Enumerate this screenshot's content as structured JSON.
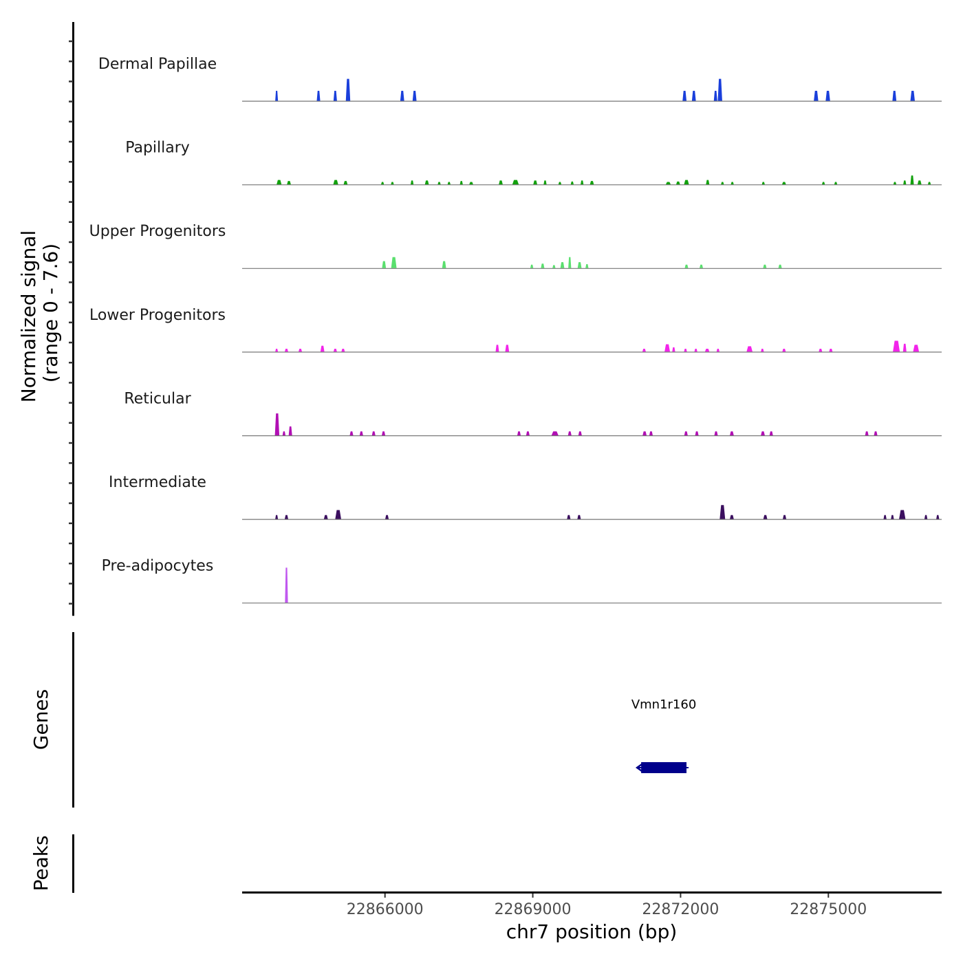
{
  "chart_data": {
    "type": "area",
    "chromosome": "chr7",
    "xlim": [
      22863100,
      22877300
    ],
    "ylim": [
      0,
      7.6
    ],
    "signal_ylabel_line1": "Normalized signal",
    "signal_ylabel_line2": "(range 0 - 7.6)",
    "genes_label": "Genes",
    "peaks_label": "Peaks",
    "xlabel": "chr7 position (bp)",
    "x_ticks": [
      22866000,
      22869000,
      22872000,
      22875000
    ],
    "x_tick_labels": [
      "22866000",
      "22869000",
      "22872000",
      "22875000"
    ],
    "tracks": [
      {
        "name": "Dermal Papillae",
        "color": "#1a3fdb",
        "peaks": [
          [
            22863800,
            55,
            1.0
          ],
          [
            22864650,
            70,
            1.0
          ],
          [
            22864990,
            70,
            1.0
          ],
          [
            22865250,
            90,
            2.2
          ],
          [
            22866350,
            80,
            1.0
          ],
          [
            22866600,
            80,
            1.0
          ],
          [
            22872080,
            80,
            1.0
          ],
          [
            22872270,
            80,
            1.0
          ],
          [
            22872710,
            70,
            1.0
          ],
          [
            22872800,
            90,
            2.2
          ],
          [
            22874750,
            90,
            1.0
          ],
          [
            22874990,
            90,
            1.0
          ],
          [
            22876340,
            80,
            1.0
          ],
          [
            22876710,
            90,
            1.0
          ]
        ]
      },
      {
        "name": "Papillary",
        "color": "#13a10e",
        "peaks": [
          [
            22863850,
            100,
            0.45
          ],
          [
            22864050,
            80,
            0.35
          ],
          [
            22865000,
            100,
            0.45
          ],
          [
            22865200,
            80,
            0.35
          ],
          [
            22865950,
            60,
            0.25
          ],
          [
            22866150,
            60,
            0.25
          ],
          [
            22866550,
            60,
            0.4
          ],
          [
            22866850,
            80,
            0.4
          ],
          [
            22867100,
            60,
            0.25
          ],
          [
            22867300,
            60,
            0.25
          ],
          [
            22867550,
            60,
            0.35
          ],
          [
            22867750,
            80,
            0.25
          ],
          [
            22868350,
            80,
            0.4
          ],
          [
            22868650,
            130,
            0.45
          ],
          [
            22869050,
            80,
            0.4
          ],
          [
            22869250,
            60,
            0.4
          ],
          [
            22869550,
            60,
            0.25
          ],
          [
            22869800,
            60,
            0.3
          ],
          [
            22870000,
            60,
            0.4
          ],
          [
            22870200,
            80,
            0.35
          ],
          [
            22871750,
            100,
            0.25
          ],
          [
            22871950,
            80,
            0.3
          ],
          [
            22872120,
            100,
            0.45
          ],
          [
            22872550,
            70,
            0.45
          ],
          [
            22872850,
            60,
            0.25
          ],
          [
            22873050,
            60,
            0.25
          ],
          [
            22873680,
            60,
            0.25
          ],
          [
            22874100,
            80,
            0.25
          ],
          [
            22874900,
            60,
            0.25
          ],
          [
            22875150,
            60,
            0.25
          ],
          [
            22876350,
            60,
            0.25
          ],
          [
            22876550,
            60,
            0.4
          ],
          [
            22876700,
            70,
            0.9
          ],
          [
            22876850,
            80,
            0.4
          ],
          [
            22877050,
            60,
            0.25
          ]
        ]
      },
      {
        "name": "Upper Progenitors",
        "color": "#5adf6e",
        "peaks": [
          [
            22865980,
            80,
            0.7
          ],
          [
            22866180,
            110,
            1.1
          ],
          [
            22867200,
            80,
            0.7
          ],
          [
            22868980,
            60,
            0.35
          ],
          [
            22869200,
            70,
            0.45
          ],
          [
            22869430,
            60,
            0.3
          ],
          [
            22869600,
            80,
            0.6
          ],
          [
            22869750,
            60,
            1.1
          ],
          [
            22869950,
            80,
            0.6
          ],
          [
            22870100,
            60,
            0.4
          ],
          [
            22872120,
            70,
            0.35
          ],
          [
            22872420,
            70,
            0.35
          ],
          [
            22873710,
            70,
            0.35
          ],
          [
            22874020,
            70,
            0.35
          ]
        ]
      },
      {
        "name": "Lower Progenitors",
        "color": "#f224ea",
        "peaks": [
          [
            22863800,
            55,
            0.3
          ],
          [
            22864000,
            70,
            0.3
          ],
          [
            22864280,
            70,
            0.3
          ],
          [
            22864730,
            80,
            0.6
          ],
          [
            22864990,
            70,
            0.3
          ],
          [
            22865150,
            70,
            0.3
          ],
          [
            22868280,
            70,
            0.7
          ],
          [
            22868480,
            80,
            0.7
          ],
          [
            22871260,
            70,
            0.3
          ],
          [
            22871730,
            110,
            0.75
          ],
          [
            22871860,
            60,
            0.45
          ],
          [
            22872100,
            60,
            0.3
          ],
          [
            22872310,
            60,
            0.3
          ],
          [
            22872540,
            90,
            0.3
          ],
          [
            22872760,
            60,
            0.3
          ],
          [
            22873400,
            120,
            0.55
          ],
          [
            22873660,
            60,
            0.3
          ],
          [
            22874100,
            70,
            0.3
          ],
          [
            22874840,
            70,
            0.3
          ],
          [
            22875050,
            70,
            0.3
          ],
          [
            22876380,
            140,
            1.1
          ],
          [
            22876550,
            70,
            0.8
          ],
          [
            22876780,
            120,
            0.7
          ]
        ]
      },
      {
        "name": "Reticular",
        "color": "#b10fb4",
        "peaks": [
          [
            22863810,
            90,
            2.2
          ],
          [
            22863950,
            60,
            0.4
          ],
          [
            22864080,
            70,
            0.9
          ],
          [
            22865320,
            70,
            0.4
          ],
          [
            22865520,
            70,
            0.4
          ],
          [
            22865770,
            70,
            0.4
          ],
          [
            22865970,
            70,
            0.4
          ],
          [
            22868720,
            70,
            0.4
          ],
          [
            22868900,
            70,
            0.4
          ],
          [
            22869450,
            140,
            0.4
          ],
          [
            22869750,
            70,
            0.4
          ],
          [
            22869960,
            70,
            0.4
          ],
          [
            22871270,
            80,
            0.4
          ],
          [
            22871400,
            70,
            0.4
          ],
          [
            22872110,
            70,
            0.4
          ],
          [
            22872330,
            70,
            0.4
          ],
          [
            22872720,
            70,
            0.4
          ],
          [
            22873040,
            80,
            0.4
          ],
          [
            22873670,
            80,
            0.4
          ],
          [
            22873840,
            70,
            0.4
          ],
          [
            22875780,
            70,
            0.4
          ],
          [
            22875960,
            70,
            0.4
          ]
        ]
      },
      {
        "name": "Intermediate",
        "color": "#3b0f5f",
        "peaks": [
          [
            22863800,
            55,
            0.4
          ],
          [
            22864000,
            70,
            0.4
          ],
          [
            22864800,
            80,
            0.4
          ],
          [
            22865050,
            120,
            0.9
          ],
          [
            22866040,
            70,
            0.4
          ],
          [
            22869730,
            70,
            0.4
          ],
          [
            22869940,
            70,
            0.4
          ],
          [
            22872850,
            110,
            1.4
          ],
          [
            22873040,
            80,
            0.4
          ],
          [
            22873720,
            80,
            0.4
          ],
          [
            22874110,
            70,
            0.4
          ],
          [
            22876150,
            60,
            0.4
          ],
          [
            22876300,
            60,
            0.4
          ],
          [
            22876500,
            130,
            0.9
          ],
          [
            22876980,
            60,
            0.4
          ],
          [
            22877220,
            60,
            0.4
          ]
        ]
      },
      {
        "name": "Pre-adipocytes",
        "color": "#c058ef",
        "peaks": [
          [
            22864000,
            60,
            3.5
          ]
        ]
      }
    ],
    "genes": [
      {
        "name": "Vmn1r160",
        "start": 22871200,
        "end": 22872120,
        "strand": "-",
        "color": "#00008b"
      }
    ],
    "peaks_track": []
  }
}
